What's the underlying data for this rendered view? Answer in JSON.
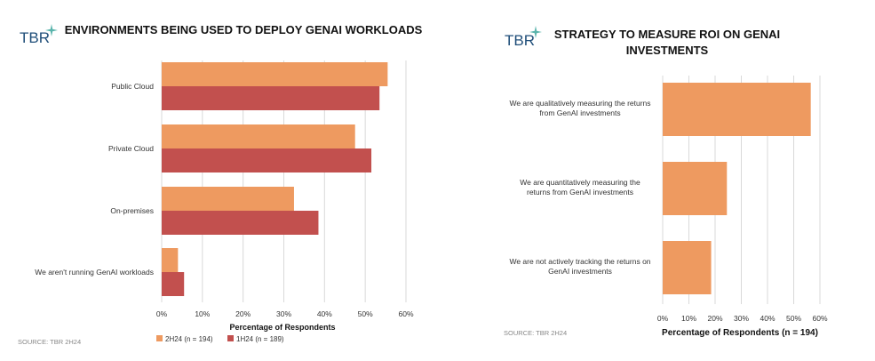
{
  "colors": {
    "series_2h24": "#ee9a60",
    "series_1h24": "#c2504e",
    "grid": "#d9d9d9",
    "logo": "#1f4e79",
    "logo_star": "#5ab4ac"
  },
  "logo": {
    "text": "TBR",
    "icon": "sparkle-star-icon"
  },
  "source": "SOURCE: TBR 2H24",
  "chart_data": [
    {
      "type": "bar",
      "orientation": "horizontal",
      "title": "ENVIRONMENTS BEING USED TO DEPLOY GENAI WORKLOADS",
      "categories": [
        "Public Cloud",
        "Private Cloud",
        "On-premises",
        "We aren't running GenAI workloads"
      ],
      "series": [
        {
          "name": "2H24 (n = 194)",
          "values": [
            55.5,
            47.5,
            32.5,
            4
          ]
        },
        {
          "name": "1H24 (n = 189)",
          "values": [
            53.5,
            51.5,
            38.5,
            5.5
          ]
        }
      ],
      "xlabel": "Percentage of Respondents",
      "xlim": [
        0,
        60
      ],
      "ticks": [
        "0%",
        "10%",
        "20%",
        "30%",
        "40%",
        "50%",
        "60%"
      ],
      "grid": true,
      "legend": "bottom"
    },
    {
      "type": "bar",
      "orientation": "horizontal",
      "title": [
        "STRATEGY TO MEASURE ROI ON GENAI",
        "INVESTMENTS"
      ],
      "categories": [
        [
          "We are qualitatively measuring the returns",
          "from GenAI investments"
        ],
        [
          "We are quantitatively measuring the",
          "returns from GenAI investments"
        ],
        [
          "We are not actively tracking the returns on",
          "GenAI investments"
        ]
      ],
      "series": [
        {
          "values": [
            56.5,
            24.5,
            18.5
          ]
        }
      ],
      "xlabel": "Percentage of Respondents (n = 194)",
      "xlim": [
        0,
        60
      ],
      "ticks": [
        "0%",
        "10%",
        "20%",
        "30%",
        "40%",
        "50%",
        "60%"
      ],
      "grid": true
    }
  ]
}
